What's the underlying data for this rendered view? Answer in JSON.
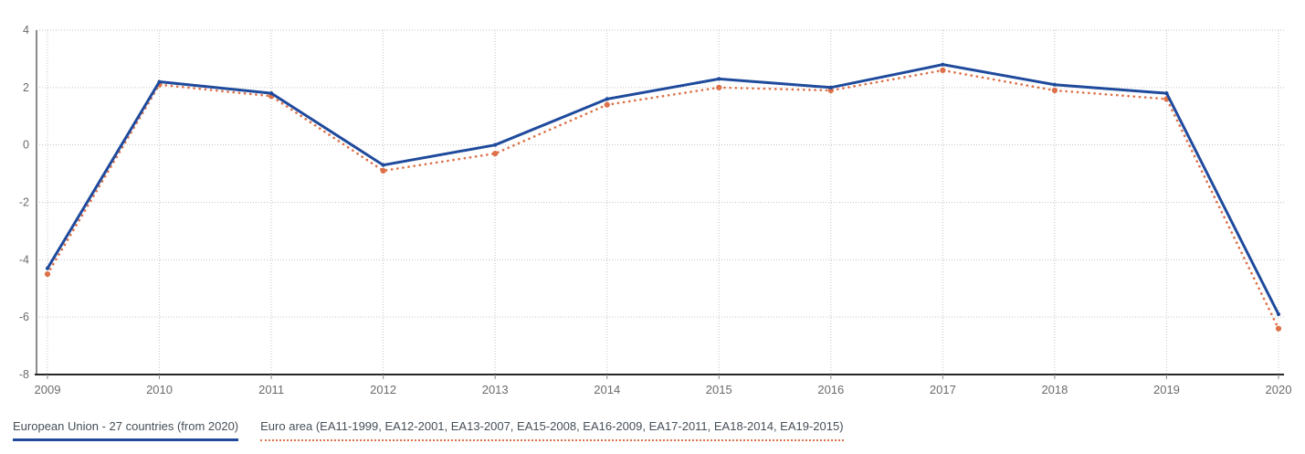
{
  "chart_data": {
    "type": "line",
    "title": "",
    "xlabel": "",
    "ylabel": "",
    "x": [
      "2009",
      "2010",
      "2011",
      "2012",
      "2013",
      "2014",
      "2015",
      "2016",
      "2017",
      "2018",
      "2019",
      "2020"
    ],
    "series": [
      {
        "name": "European Union - 27 countries (from 2020)",
        "style": "solid",
        "color": "#1f4a9c",
        "values": [
          -4.3,
          2.2,
          1.8,
          -0.7,
          0.0,
          1.6,
          2.3,
          2.0,
          2.8,
          2.1,
          1.8,
          -5.9
        ]
      },
      {
        "name": "Euro area (EA11-1999, EA12-2001, EA13-2007, EA15-2008, EA16-2009, EA17-2011, EA18-2014, EA19-2015)",
        "style": "dotted",
        "color": "#dd7048",
        "values": [
          -4.5,
          2.1,
          1.7,
          -0.9,
          -0.3,
          1.4,
          2.0,
          1.9,
          2.6,
          1.9,
          1.6,
          -6.4
        ]
      }
    ],
    "ylim": [
      -8,
      4
    ],
    "y_ticks": [
      "4",
      "2",
      "0",
      "-2",
      "-4",
      "-6",
      "-8"
    ],
    "grid": true,
    "legend_position": "bottom-left",
    "colors": {
      "grid": "#c3c3c3",
      "y_axis": "#8a8a8a",
      "x_axis": "#262626",
      "tick_label": "#6b6b6b",
      "legend_text": "#454f58"
    }
  }
}
